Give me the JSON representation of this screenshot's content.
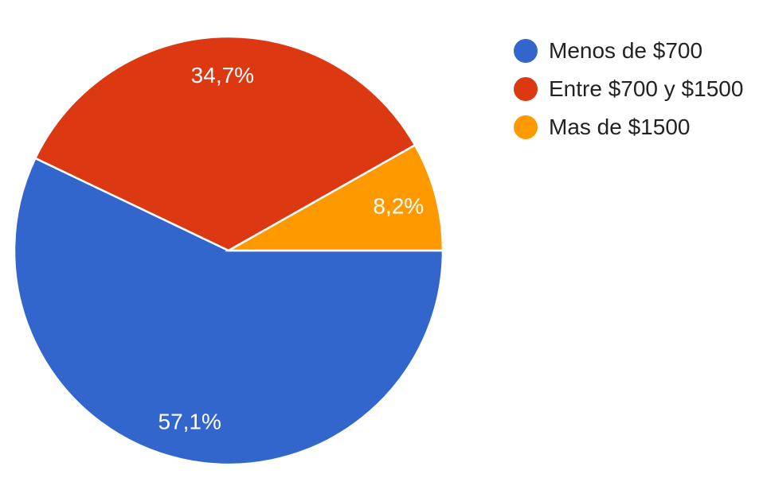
{
  "chart_data": {
    "type": "pie",
    "categories": [
      "Menos de $700",
      "Entre $700 y $1500",
      "Mas de $1500"
    ],
    "values": [
      57.1,
      34.7,
      8.2
    ],
    "labels": [
      "57,1%",
      "34,7%",
      "8,2%"
    ],
    "colors": [
      "#3366cc",
      "#dc3912",
      "#ff9900"
    ],
    "legend_position": "right",
    "start": "3-o'clock, clockwise"
  }
}
